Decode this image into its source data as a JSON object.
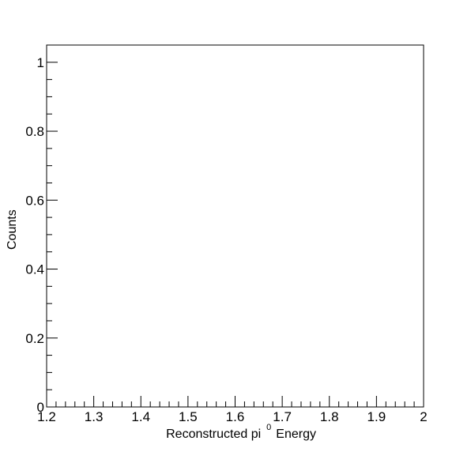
{
  "chart_data": {
    "type": "bar",
    "title": "",
    "x": [],
    "values": [],
    "xlim": [
      1.2,
      2.0
    ],
    "ylim": [
      0,
      1.05
    ],
    "x_ticks": [
      1.2,
      1.3,
      1.4,
      1.5,
      1.6,
      1.7,
      1.8,
      1.9,
      2.0
    ],
    "x_tick_labels": [
      "1.2",
      "1.3",
      "1.4",
      "1.5",
      "1.6",
      "1.7",
      "1.8",
      "1.9",
      "2"
    ],
    "y_ticks": [
      0,
      0.2,
      0.4,
      0.6,
      0.8,
      1.0
    ],
    "y_tick_labels": [
      "0",
      "0.2",
      "0.4",
      "0.6",
      "0.8",
      "1"
    ],
    "x_minor_per_major": 5,
    "y_minor_per_major": 4,
    "xlabel": {
      "prefix": "Reconstructed pi",
      "superscript": "0",
      "suffix": "Energy"
    },
    "ylabel": "Counts",
    "grid": false,
    "legend": "none"
  }
}
